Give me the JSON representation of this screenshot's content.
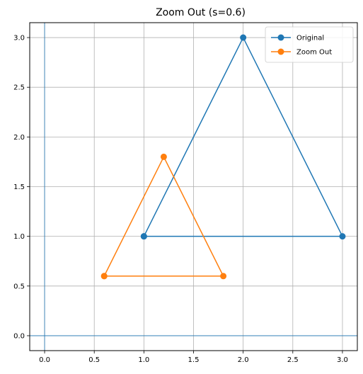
{
  "chart_data": {
    "type": "line",
    "title": "Zoom Out (s=0.6)",
    "xlabel": "",
    "ylabel": "",
    "xlim": [
      -0.15,
      3.15
    ],
    "ylim": [
      -0.15,
      3.15
    ],
    "xticks": [
      "0.0",
      "0.5",
      "1.0",
      "1.5",
      "2.0",
      "2.5",
      "3.0"
    ],
    "yticks": [
      "0.0",
      "0.5",
      "1.0",
      "1.5",
      "2.0",
      "2.5",
      "3.0"
    ],
    "grid": true,
    "legend_position": "top-right",
    "reference_lines": {
      "x": 0,
      "y": 0,
      "color": "#1f77b4"
    },
    "series": [
      {
        "name": "Original",
        "color": "#1f77b4",
        "marker": "circle",
        "points": [
          [
            1,
            1
          ],
          [
            2,
            3
          ],
          [
            3,
            1
          ],
          [
            1,
            1
          ]
        ]
      },
      {
        "name": "Zoom Out",
        "color": "#ff7f0e",
        "marker": "circle",
        "points": [
          [
            0.6,
            0.6
          ],
          [
            1.2,
            1.8
          ],
          [
            1.8,
            0.6
          ],
          [
            0.6,
            0.6
          ]
        ]
      }
    ]
  }
}
